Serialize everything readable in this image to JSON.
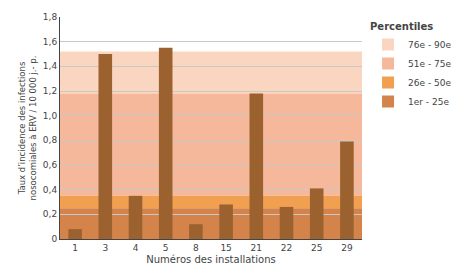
{
  "chart_data": {
    "type": "bar",
    "categories": [
      "1",
      "3",
      "4",
      "5",
      "8",
      "15",
      "21",
      "22",
      "25",
      "29"
    ],
    "values": [
      0.08,
      1.5,
      0.35,
      1.55,
      0.12,
      0.28,
      1.18,
      0.26,
      0.41,
      0.79
    ],
    "color": "#9B6230",
    "xlabel": "Numéros des installations",
    "ylabel": "Taux d’incidence des infections\nnosocomiales à ERV / 10 000 j.- p.",
    "ylim": [
      0,
      1.8
    ],
    "yticks": [
      0,
      {
        "value": 0.2,
        "label": "0,2"
      },
      {
        "value": 0.4,
        "label": "0,4"
      },
      {
        "value": 0.6,
        "label": "0,6"
      },
      {
        "value": 0.8,
        "label": "0,8"
      },
      {
        "value": 1.0,
        "label": "1,0"
      },
      {
        "value": 1.2,
        "label": "1,2"
      },
      {
        "value": 1.4,
        "label": "1,4"
      },
      {
        "value": 1.6,
        "label": "1,6"
      },
      {
        "value": 1.8,
        "label": "1,8"
      }
    ],
    "grid": true,
    "legend": "right",
    "legend_title": "Percentiles",
    "bands": [
      {
        "label": "76e - 90e",
        "bottom": 1.18,
        "top": 1.52,
        "color": "#FAD5C0"
      },
      {
        "label": "51e - 75e",
        "bottom": 0.35,
        "top": 1.18,
        "color": "#F5B89A"
      },
      {
        "label": "26e - 50e",
        "bottom": 0.25,
        "top": 0.35,
        "color": "#F0A050"
      },
      {
        "label": "1er - 25e",
        "bottom": 0,
        "top": 0.25,
        "color": "#D4844A"
      }
    ]
  }
}
